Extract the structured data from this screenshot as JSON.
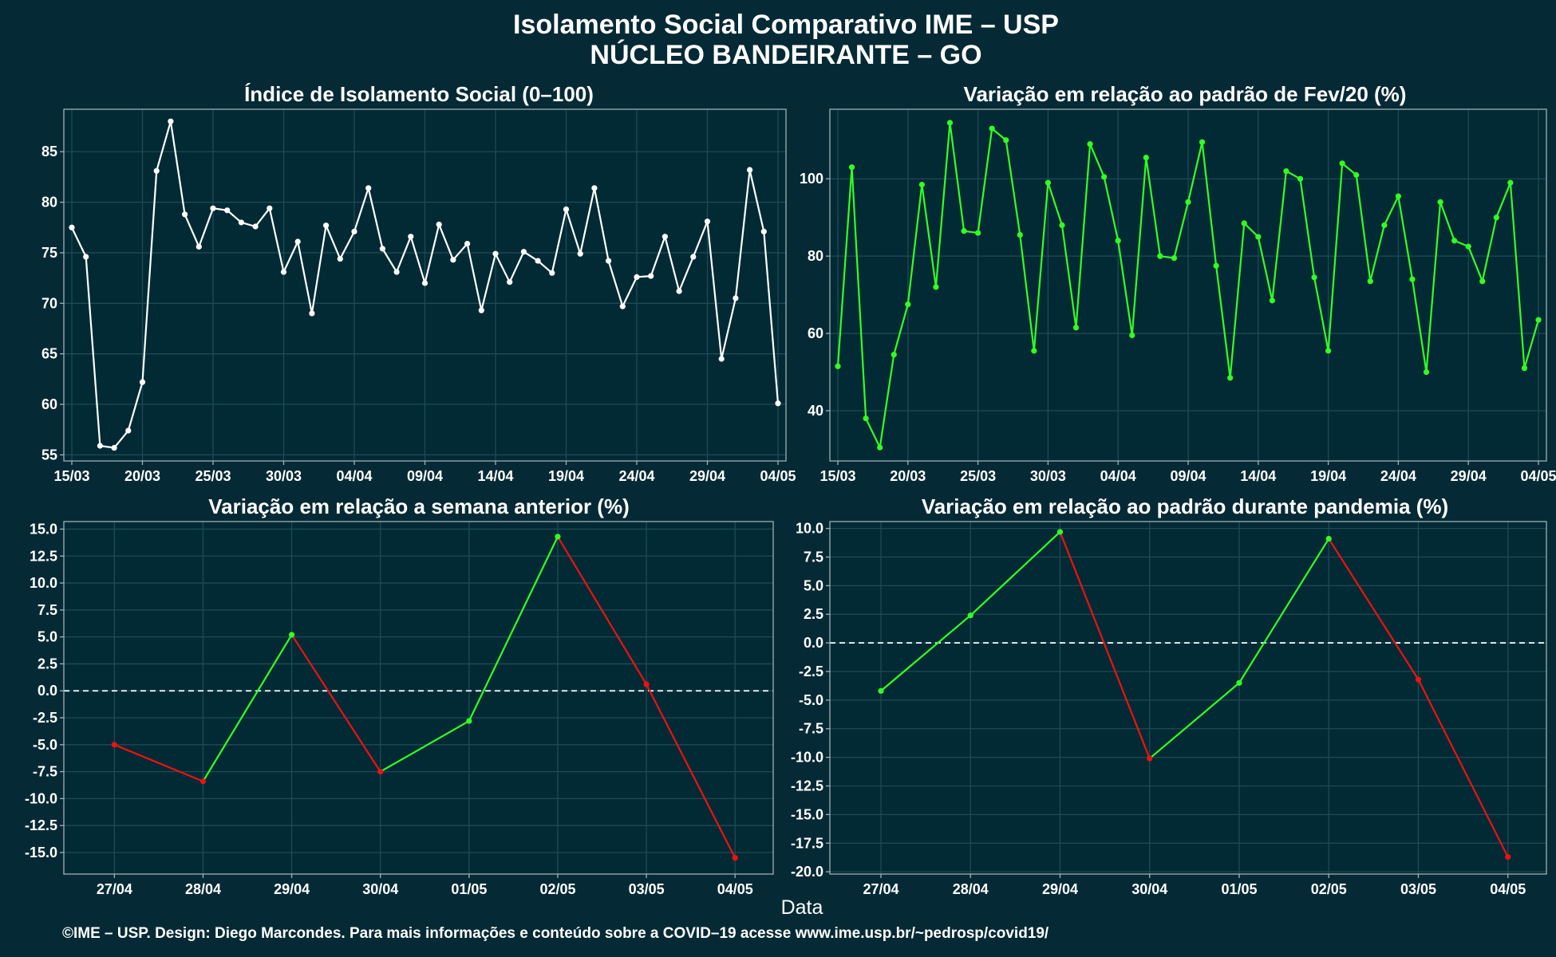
{
  "figure": {
    "title_line1": "Isolamento Social Comparativo IME – USP",
    "title_line2": "NÚCLEO BANDEIRANTE – GO",
    "xlabel": "Data",
    "caption": "©IME – USP. Design: Diego Marcondes. Para mais informações e conteúdo sobre a COVID–19 acesse www.ime.usp.br/~pedrosp/covid19/"
  },
  "colors": {
    "background": "#062a35",
    "panel": "#012a35",
    "white_series": "#ffffff",
    "green": "#33ff22",
    "red": "#ee1111"
  },
  "chart_data": [
    {
      "type": "line",
      "title": "Índice de Isolamento Social (0–100)",
      "x_start": "15/03",
      "x_end": "04/05",
      "x_tick_labels": [
        "15/03",
        "20/03",
        "25/03",
        "30/03",
        "04/04",
        "09/04",
        "14/04",
        "19/04",
        "24/04",
        "29/04",
        "04/05"
      ],
      "y_ticks": [
        55,
        60,
        65,
        70,
        75,
        80,
        85
      ],
      "ylim": [
        54.4,
        89.2
      ],
      "grid": true,
      "series": [
        {
          "color": "#ffffff",
          "values": [
            77.5,
            74.6,
            55.9,
            55.7,
            57.4,
            62.2,
            83.1,
            88,
            78.8,
            75.6,
            79.4,
            79.2,
            78,
            77.6,
            79.4,
            73.1,
            76.1,
            69,
            77.7,
            74.4,
            77.1,
            81.4,
            75.4,
            73.1,
            76.6,
            72,
            77.8,
            74.3,
            75.9,
            69.3,
            74.9,
            72.1,
            75.1,
            74.2,
            73,
            79.3,
            74.9,
            81.4,
            74.2,
            69.7,
            72.6,
            72.7,
            76.6,
            71.2,
            74.6,
            78.1,
            64.5,
            70.5,
            83.2,
            77.1,
            60.1
          ]
        }
      ]
    },
    {
      "type": "line",
      "title": "Variação em relação ao padrão de Fev/20 (%)",
      "x_start": "15/03",
      "x_end": "04/05",
      "x_tick_labels": [
        "15/03",
        "20/03",
        "25/03",
        "30/03",
        "04/04",
        "09/04",
        "14/04",
        "19/04",
        "24/04",
        "29/04",
        "04/05"
      ],
      "y_ticks": [
        40,
        60,
        80,
        100
      ],
      "ylim": [
        27,
        118
      ],
      "grid": true,
      "series": [
        {
          "color": "#33ff22",
          "values": [
            51.5,
            103,
            38,
            30.5,
            54.5,
            67.5,
            98.5,
            72,
            114.5,
            86.5,
            86,
            113,
            110,
            85.5,
            55.5,
            99,
            88,
            61.5,
            109,
            100.5,
            84,
            59.5,
            105.5,
            80,
            79.5,
            94,
            109.5,
            77.5,
            48.5,
            88.5,
            85,
            68.5,
            102,
            100,
            74.5,
            55.5,
            104,
            101,
            73.5,
            88,
            95.5,
            74,
            50,
            94,
            84,
            82.5,
            73.5,
            90,
            99,
            51,
            63.5
          ]
        }
      ]
    },
    {
      "type": "line",
      "title": "Variação em relação a semana anterior (%)",
      "categories": [
        "27/04",
        "28/04",
        "29/04",
        "30/04",
        "01/05",
        "02/05",
        "03/05",
        "04/05"
      ],
      "y_ticks": [
        15.0,
        12.5,
        10.0,
        7.5,
        5.0,
        2.5,
        0.0,
        -2.5,
        -5.0,
        -7.5,
        -10.0,
        -12.5,
        -15.0
      ],
      "y_tick_labels": [
        "15.0",
        "12.5",
        "10.0",
        "7.5",
        "5.0",
        "2.5",
        "0.0",
        "-2.5",
        "-5.0",
        "-7.5",
        "-10.0",
        "-12.5",
        "-15.0"
      ],
      "ylim": [
        -17,
        15.7
      ],
      "reference_line": 0,
      "grid": true,
      "colors": "green where rising, red where falling",
      "series": [
        {
          "values": [
            -5.0,
            -8.4,
            5.2,
            -7.5,
            -2.8,
            14.3,
            0.6,
            -15.5
          ]
        }
      ]
    },
    {
      "type": "line",
      "title": "Variação em relação ao padrão durante pandemia (%)",
      "categories": [
        "27/04",
        "28/04",
        "29/04",
        "30/04",
        "01/05",
        "02/05",
        "03/05",
        "04/05"
      ],
      "y_ticks": [
        10.0,
        7.5,
        5.0,
        2.5,
        0.0,
        -2.5,
        -5.0,
        -7.5,
        -10.0,
        -12.5,
        -15.0,
        -17.5,
        -20.0
      ],
      "y_tick_labels": [
        "10.0",
        "7.5",
        "5.0",
        "2.5",
        "0.0",
        "-2.5",
        "-5.0",
        "-7.5",
        "-10.0",
        "-12.5",
        "-15.0",
        "-17.5",
        "-20.0"
      ],
      "ylim": [
        -20.2,
        10.6
      ],
      "reference_line": 0,
      "grid": true,
      "colors": "green where rising, red where falling",
      "series": [
        {
          "values": [
            -4.2,
            2.4,
            9.7,
            -10.1,
            -3.5,
            9.1,
            -3.2,
            -18.7
          ]
        }
      ]
    }
  ]
}
